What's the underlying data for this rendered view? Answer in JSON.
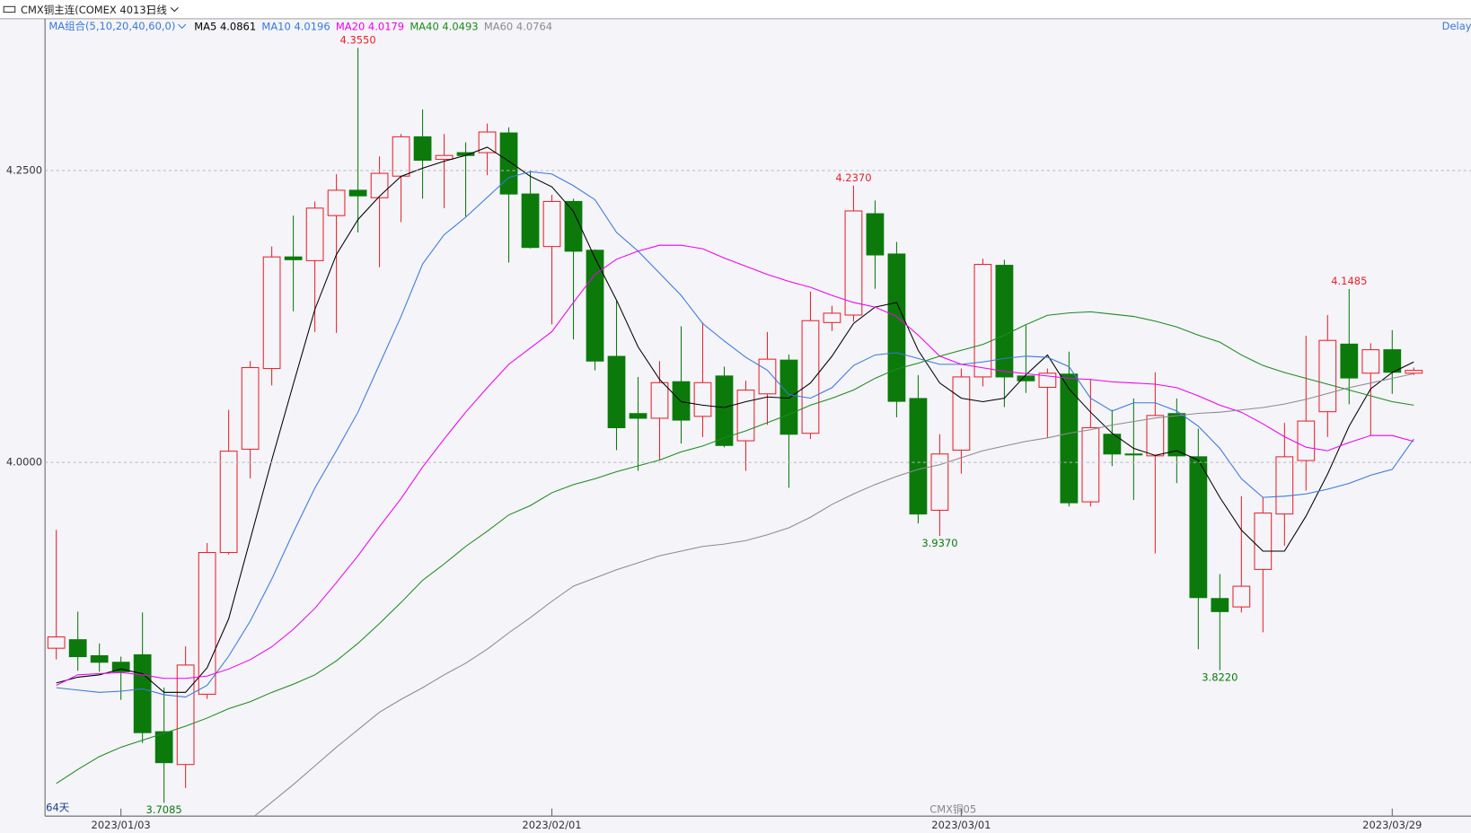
{
  "chart_data": {
    "type": "candlestick",
    "title": "CMX铜主连(COMEX 4013)",
    "period": "日线",
    "indicator_label": "MA组合(5,10,20,40,60,0)",
    "feed": "Delay",
    "bar_count": "64天",
    "contract": "CMX铜05",
    "categories": [
      null,
      null,
      null,
      "2023/01/03",
      null,
      null,
      null,
      null,
      null,
      null,
      null,
      null,
      null,
      null,
      null,
      null,
      null,
      null,
      null,
      null,
      null,
      null,
      null,
      "2023/02/01",
      null,
      null,
      null,
      null,
      null,
      null,
      null,
      null,
      null,
      null,
      null,
      null,
      null,
      null,
      null,
      null,
      null,
      null,
      "2023/03/01",
      null,
      null,
      null,
      null,
      null,
      null,
      null,
      null,
      null,
      null,
      null,
      null,
      null,
      null,
      null,
      null,
      null,
      null,
      null,
      "2023/03/29",
      null
    ],
    "open": [
      3.8408,
      3.8481,
      3.8344,
      3.8288,
      3.8352,
      3.7693,
      3.7412,
      3.8014,
      3.9228,
      4.0113,
      4.0804,
      4.176,
      4.1728,
      4.2114,
      4.2331,
      4.2267,
      4.2452,
      4.2789,
      4.2596,
      4.2653,
      4.2653,
      4.2822,
      4.2299,
      4.1849,
      4.2235,
      4.1817,
      4.0908,
      4.0418,
      4.0378,
      4.0691,
      4.0394,
      4.074,
      4.0185,
      4.0587,
      4.0876,
      4.0249,
      4.1198,
      4.1262,
      4.213,
      4.1785,
      4.0547,
      3.959,
      4.0105,
      4.0732,
      4.1688,
      4.074,
      4.0643,
      4.0756,
      3.9662,
      4.0241,
      4.0072,
      4.0056,
      4.0418,
      4.0048,
      3.8834,
      3.8762,
      3.9083,
      3.9558,
      4.0016,
      4.0434,
      4.1013,
      4.0764,
      4.0965,
      4.0764
    ],
    "high": [
      3.9421,
      3.8722,
      3.8449,
      3.8336,
      3.8714,
      3.8071,
      3.8424,
      3.9309,
      4.045,
      4.0868,
      4.1849,
      4.2114,
      4.2235,
      4.2468,
      4.355,
      4.2621,
      4.2813,
      4.3023,
      4.2813,
      4.2741,
      4.2902,
      4.287,
      4.25,
      4.2291,
      4.2259,
      4.1825,
      4.1383,
      4.0732,
      4.0868,
      4.1166,
      4.1198,
      4.082,
      4.0699,
      4.1117,
      4.0924,
      4.1463,
      4.1342,
      4.237,
      4.2243,
      4.1889,
      4.0748,
      4.0241,
      4.0804,
      4.1744,
      4.1736,
      4.1174,
      4.0804,
      4.0949,
      4.0716,
      4.045,
      4.0547,
      4.0772,
      4.0547,
      4.0289,
      3.9043,
      3.9711,
      3.9703,
      4.0338,
      4.1085,
      4.1262,
      4.1485,
      4.1021,
      4.1133,
      4.0812
    ],
    "low": [
      3.8312,
      3.8215,
      3.8207,
      3.7966,
      3.7596,
      3.7085,
      3.7211,
      3.7974,
      3.9212,
      3.9863,
      4.0659,
      4.1294,
      4.1117,
      4.1109,
      4.1969,
      4.1672,
      4.2058,
      4.2259,
      4.2178,
      4.2106,
      4.246,
      4.1712,
      4.1833,
      4.1182,
      4.1053,
      4.0788,
      4.0105,
      3.9928,
      4.0024,
      4.0161,
      4.0217,
      4.0129,
      3.9928,
      4.0322,
      3.9783,
      4.0201,
      4.1125,
      4.1206,
      4.1487,
      4.0386,
      3.9477,
      3.937,
      3.9904,
      4.0651,
      4.0474,
      4.0595,
      4.0209,
      3.9622,
      3.9622,
      3.9968,
      3.9678,
      3.922,
      3.9823,
      3.84,
      3.822,
      3.8714,
      3.8545,
      3.9285,
      3.9759,
      4.0217,
      4.0498,
      4.0233,
      4.0587,
      4.0748
    ],
    "close": [
      3.8505,
      3.8336,
      3.8288,
      3.8207,
      3.7685,
      3.7428,
      3.8264,
      3.9228,
      4.0096,
      4.0812,
      4.176,
      4.1736,
      4.2178,
      4.2331,
      4.2283,
      4.2476,
      4.2789,
      4.2588,
      4.2629,
      4.2629,
      4.283,
      4.2299,
      4.1841,
      4.2235,
      4.1809,
      4.0868,
      4.0297,
      4.0378,
      4.0683,
      4.0362,
      4.0683,
      4.0145,
      4.0619,
      4.0884,
      4.0241,
      4.1214,
      4.1278,
      4.2154,
      4.1777,
      4.0523,
      3.9558,
      4.0072,
      4.0732,
      4.1696,
      4.0732,
      4.0699,
      4.0764,
      3.9654,
      4.0297,
      4.0072,
      4.0064,
      4.0402,
      4.0056,
      3.8842,
      3.8722,
      3.8939,
      3.9566,
      4.0048,
      4.0354,
      4.1045,
      4.0723,
      4.0965,
      4.0772,
      4.0788
    ],
    "up_color": "#e8222c",
    "down_color": "#0b7a0b",
    "series": [
      {
        "name": "MA5",
        "color": "#000000",
        "latest": 4.0861,
        "values": [
          3.811,
          3.816,
          3.818,
          3.823,
          3.819,
          3.803,
          3.803,
          3.824,
          3.866,
          3.934,
          4.002,
          4.067,
          4.131,
          4.178,
          4.208,
          4.228,
          4.245,
          4.252,
          4.258,
          4.263,
          4.27,
          4.258,
          4.245,
          4.236,
          4.215,
          4.175,
          4.139,
          4.099,
          4.071,
          4.052,
          4.049,
          4.047,
          4.052,
          4.056,
          4.055,
          4.068,
          4.091,
          4.119,
          4.133,
          4.137,
          4.096,
          4.068,
          4.055,
          4.052,
          4.055,
          4.075,
          4.092,
          4.063,
          4.043,
          4.025,
          4.012,
          4.006,
          4.01,
          4.002,
          3.97,
          3.942,
          3.924,
          3.924,
          3.954,
          3.99,
          4.031,
          4.063,
          4.077,
          4.086
        ]
      },
      {
        "name": "MA10",
        "color": "#3a78d8",
        "latest": 4.0196,
        "values": [
          3.807,
          3.805,
          3.803,
          3.804,
          3.806,
          3.801,
          3.799,
          3.809,
          3.834,
          3.864,
          3.9,
          3.94,
          3.978,
          4.01,
          4.043,
          4.084,
          4.125,
          4.17,
          4.195,
          4.21,
          4.227,
          4.244,
          4.249,
          4.247,
          4.237,
          4.225,
          4.197,
          4.181,
          4.162,
          4.143,
          4.119,
          4.104,
          4.09,
          4.079,
          4.058,
          4.055,
          4.064,
          4.083,
          4.092,
          4.094,
          4.089,
          4.084,
          4.084,
          4.086,
          4.089,
          4.091,
          4.09,
          4.082,
          4.055,
          4.044,
          4.051,
          4.051,
          4.044,
          4.031,
          4.012,
          3.986,
          3.97,
          3.971,
          3.973,
          3.977,
          3.982,
          3.989,
          3.994,
          4.02
        ]
      },
      {
        "name": "MA20",
        "color": "#ee00ee",
        "latest": 4.0179,
        "values": [
          3.809,
          3.818,
          3.819,
          3.82,
          3.818,
          3.815,
          3.815,
          3.817,
          3.823,
          3.831,
          3.842,
          3.857,
          3.875,
          3.897,
          3.92,
          3.945,
          3.969,
          3.996,
          4.02,
          4.043,
          4.064,
          4.084,
          4.098,
          4.112,
          4.137,
          4.161,
          4.174,
          4.181,
          4.186,
          4.186,
          4.183,
          4.175,
          4.168,
          4.161,
          4.155,
          4.15,
          4.143,
          4.137,
          4.133,
          4.125,
          4.109,
          4.091,
          4.084,
          4.081,
          4.078,
          4.076,
          4.074,
          4.072,
          4.071,
          4.069,
          4.068,
          4.067,
          4.064,
          4.057,
          4.049,
          4.043,
          4.033,
          4.022,
          4.013,
          4.01,
          4.017,
          4.023,
          4.023,
          4.018
        ]
      },
      {
        "name": "MA40",
        "color": "#1e8a1e",
        "latest": 4.0493,
        "values": [
          3.725,
          3.737,
          3.748,
          3.756,
          3.762,
          3.768,
          3.774,
          3.781,
          3.789,
          3.795,
          3.803,
          3.81,
          3.818,
          3.83,
          3.845,
          3.862,
          3.88,
          3.899,
          3.913,
          3.928,
          3.941,
          3.955,
          3.963,
          3.974,
          3.981,
          3.986,
          3.992,
          3.997,
          4.002,
          4.009,
          4.014,
          4.021,
          4.027,
          4.034,
          4.041,
          4.049,
          4.055,
          4.062,
          4.072,
          4.08,
          4.085,
          4.091,
          4.096,
          4.101,
          4.109,
          4.118,
          4.126,
          4.128,
          4.129,
          4.127,
          4.125,
          4.121,
          4.116,
          4.109,
          4.103,
          4.092,
          4.083,
          4.077,
          4.072,
          4.067,
          4.062,
          4.057,
          4.052,
          4.049
        ]
      },
      {
        "name": "MA60",
        "color": "#8c8c8c",
        "latest": 4.0764,
        "values": [
          null,
          null,
          null,
          null,
          null,
          null,
          null,
          null,
          null,
          3.694,
          3.709,
          3.724,
          3.74,
          3.756,
          3.771,
          3.786,
          3.797,
          3.807,
          3.818,
          3.828,
          3.84,
          3.854,
          3.867,
          3.881,
          3.894,
          3.901,
          3.908,
          3.914,
          3.92,
          3.924,
          3.928,
          3.93,
          3.933,
          3.938,
          3.944,
          3.953,
          3.964,
          3.973,
          3.981,
          3.988,
          3.994,
          3.998,
          4.004,
          4.01,
          4.014,
          4.018,
          4.021,
          4.025,
          4.028,
          4.032,
          4.035,
          4.038,
          4.04,
          4.042,
          4.043,
          4.045,
          4.047,
          4.05,
          4.054,
          4.059,
          4.064,
          4.068,
          4.072,
          4.076
        ]
      }
    ],
    "annotations": [
      {
        "value": 4.355,
        "label": "4.3550"
      },
      {
        "value": 3.7085,
        "label": "3.7085"
      },
      {
        "value": 4.237,
        "label": "4.2370"
      },
      {
        "value": 3.937,
        "label": "3.9370"
      },
      {
        "value": 3.822,
        "label": "3.8220"
      },
      {
        "value": 4.1485,
        "label": "4.1485"
      }
    ],
    "ylim": [
      3.697,
      4.38
    ],
    "yticks": [
      {
        "value": 4.25,
        "label": "4.2500"
      },
      {
        "value": 4.0,
        "label": "4.0000"
      }
    ],
    "grid": true
  }
}
